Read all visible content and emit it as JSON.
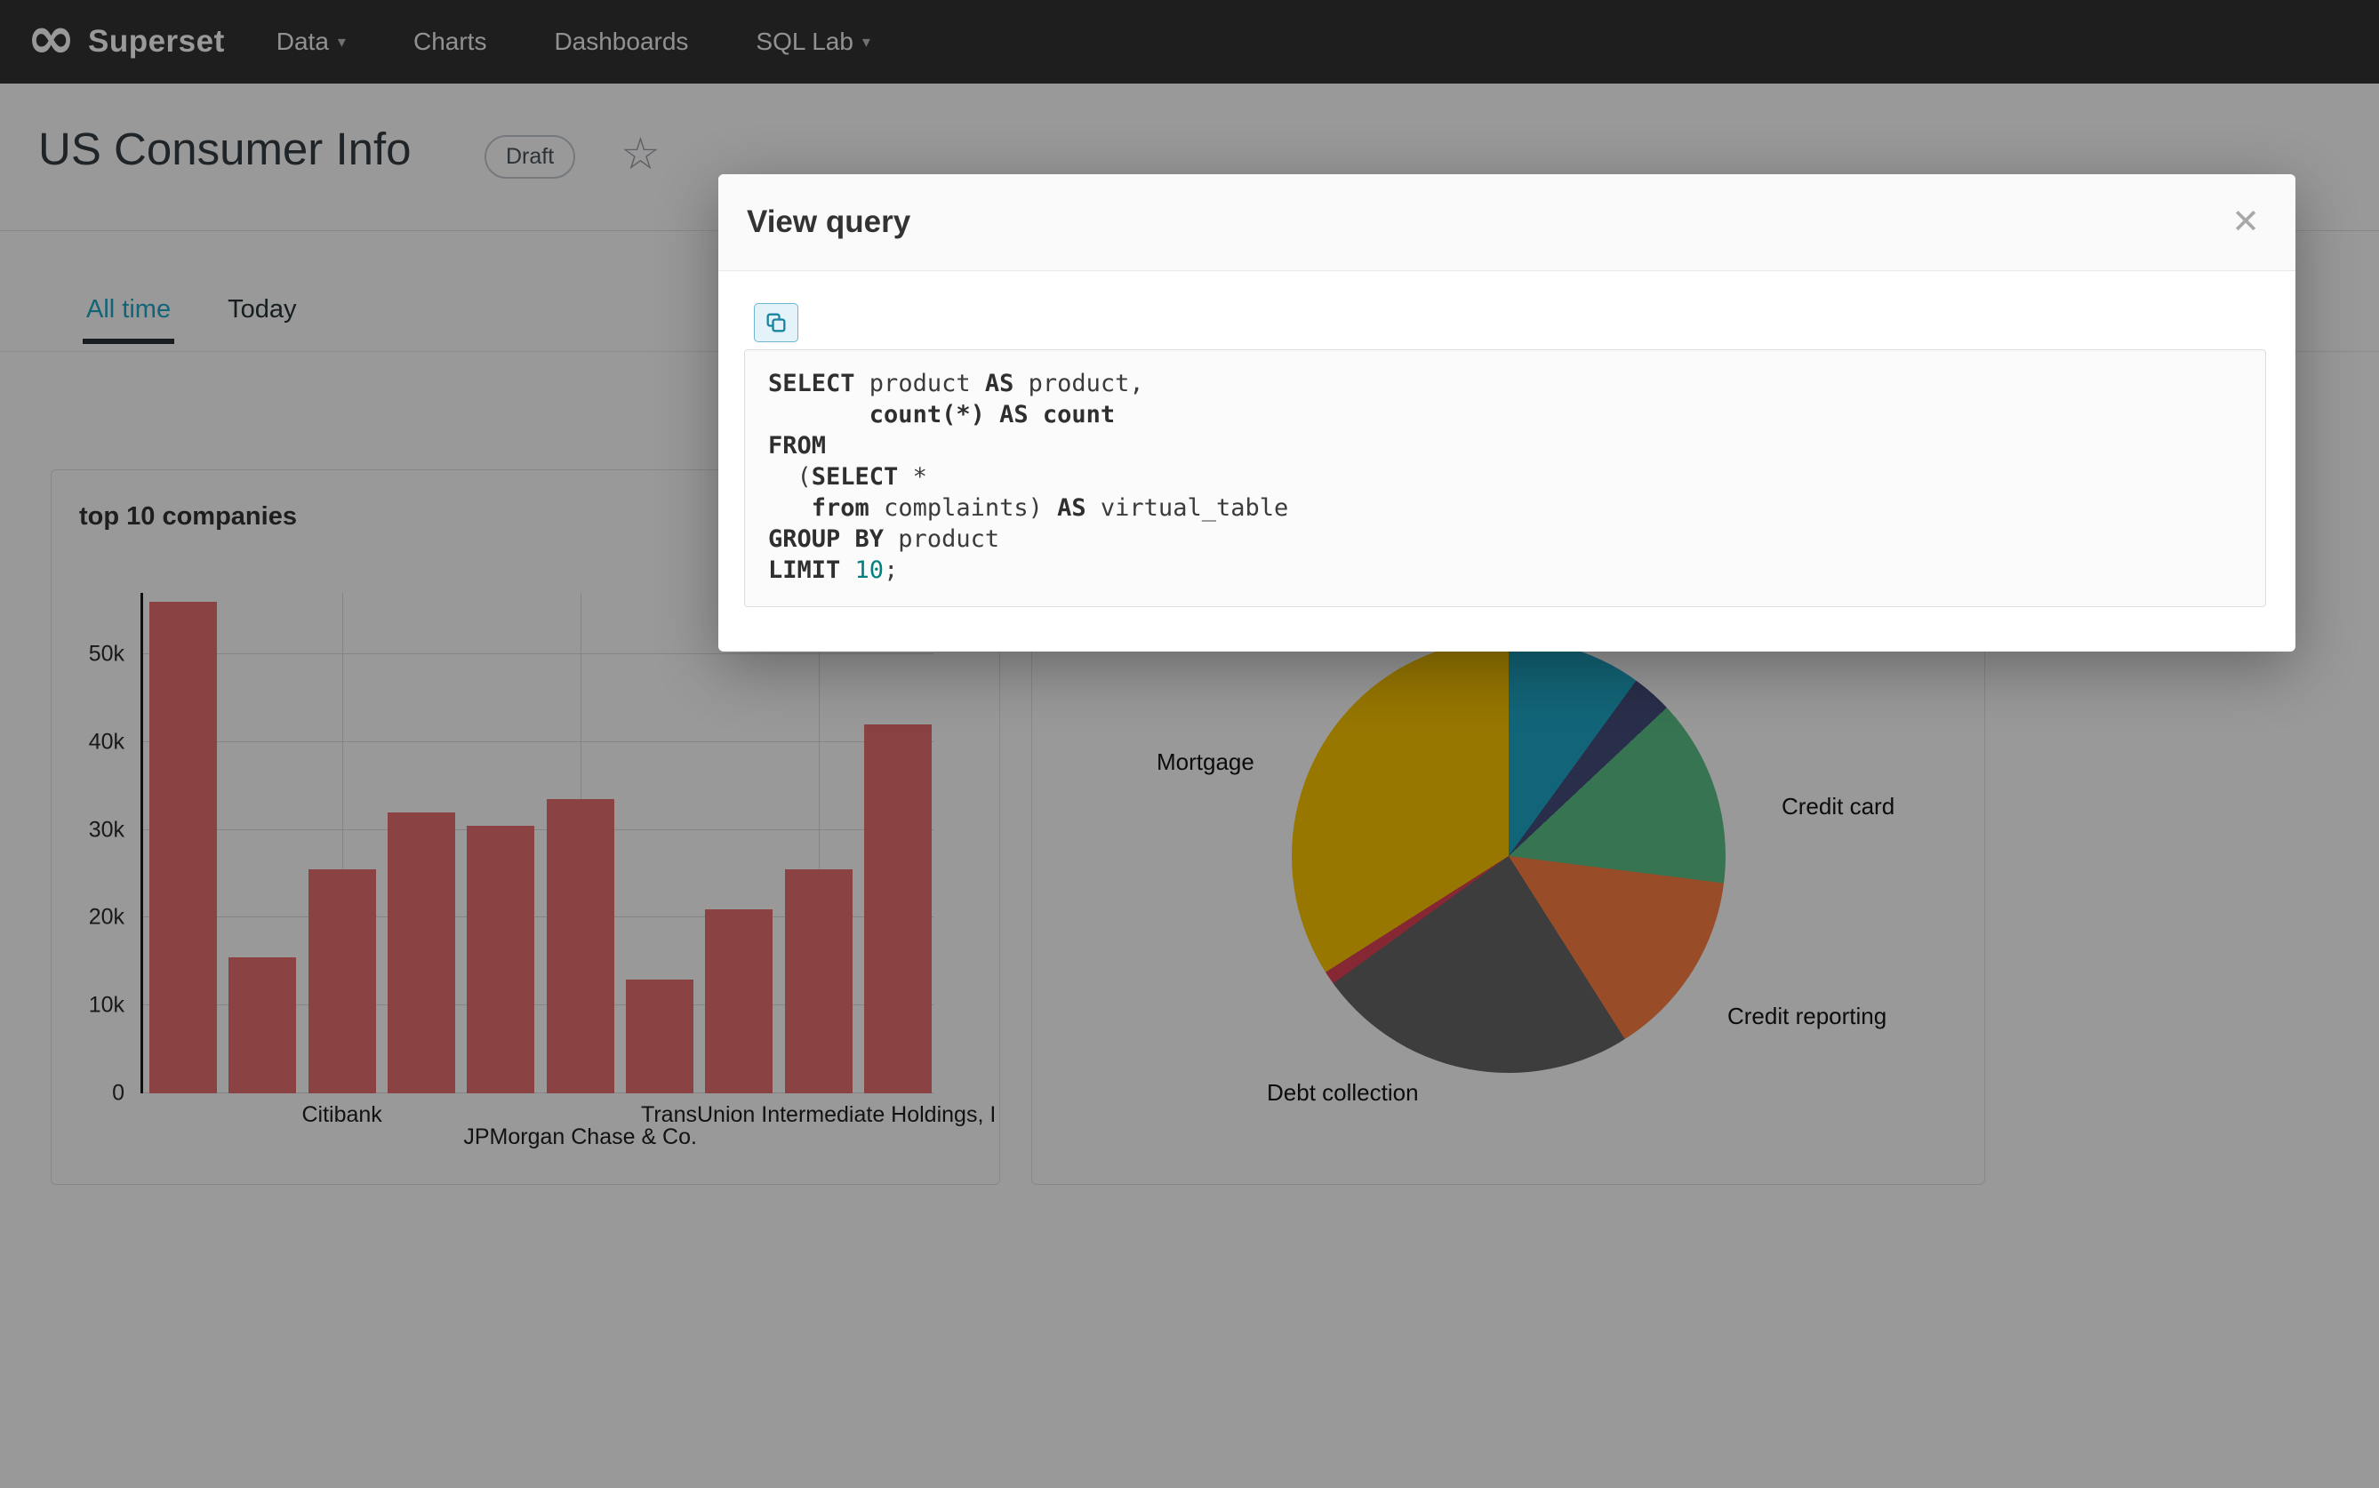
{
  "nav": {
    "brand": "Superset",
    "items": [
      {
        "label": "Data",
        "caret": true
      },
      {
        "label": "Charts",
        "caret": false
      },
      {
        "label": "Dashboards",
        "caret": false
      },
      {
        "label": "SQL Lab",
        "caret": true
      }
    ]
  },
  "icons": {
    "logo_infinity": "∞",
    "caret_down": "▾",
    "favorite_star": "☆",
    "close": "✕"
  },
  "header": {
    "title": "US Consumer Info",
    "badge": "Draft"
  },
  "tabs": [
    {
      "label": "All time",
      "active": true
    },
    {
      "label": "Today",
      "active": false
    }
  ],
  "modal": {
    "title": "View query"
  },
  "sql": {
    "lines": [
      [
        {
          "t": "SELECT",
          "s": "k"
        },
        {
          "t": " product ",
          "s": "n"
        },
        {
          "t": "AS",
          "s": "k"
        },
        {
          "t": " product,",
          "s": "n"
        }
      ],
      [
        {
          "t": "       ",
          "s": "n"
        },
        {
          "t": "count(*) AS count",
          "s": "k"
        }
      ],
      [
        {
          "t": "FROM",
          "s": "k"
        }
      ],
      [
        {
          "t": "  (",
          "s": "n"
        },
        {
          "t": "SELECT",
          "s": "k"
        },
        {
          "t": " *",
          "s": "n"
        }
      ],
      [
        {
          "t": "   ",
          "s": "n"
        },
        {
          "t": "from",
          "s": "k"
        },
        {
          "t": " complaints) ",
          "s": "n"
        },
        {
          "t": "AS",
          "s": "k"
        },
        {
          "t": " virtual_table",
          "s": "n"
        }
      ],
      [
        {
          "t": "GROUP BY",
          "s": "k"
        },
        {
          "t": " product",
          "s": "n"
        }
      ],
      [
        {
          "t": "LIMIT",
          "s": "k"
        },
        {
          "t": " ",
          "s": "n"
        },
        {
          "t": "10",
          "s": "num"
        },
        {
          "t": ";",
          "s": "n"
        }
      ]
    ]
  },
  "chart_data": [
    {
      "type": "bar",
      "title": "top 10 companies",
      "values": [
        56000,
        15500,
        25500,
        32000,
        30500,
        33500,
        13000,
        21000,
        25500,
        42000
      ],
      "ylim": [
        0,
        57000
      ],
      "yticks": [
        {
          "v": 0,
          "label": "0"
        },
        {
          "v": 10000,
          "label": "10k"
        },
        {
          "v": 20000,
          "label": "20k"
        },
        {
          "v": 30000,
          "label": "30k"
        },
        {
          "v": 40000,
          "label": "40k"
        },
        {
          "v": 50000,
          "label": "50k"
        }
      ],
      "x_tick_labels": [
        {
          "label": "Citibank",
          "bar_index": 2,
          "row": 1
        },
        {
          "label": "JPMorgan Chase & Co.",
          "bar_index": 5,
          "row": 2
        },
        {
          "label": "TransUnion Intermediate Holdings, I",
          "bar_index": 8,
          "row": 1
        }
      ],
      "bar_color": "#E66F71",
      "grid": true,
      "legend": false,
      "xlabel": "",
      "ylabel": ""
    },
    {
      "type": "pie",
      "title": "",
      "slices": [
        {
          "label": "",
          "value": 10,
          "color": "#1FA8C9"
        },
        {
          "label": "",
          "value": 3,
          "color": "#454E7C"
        },
        {
          "label": "Credit card",
          "value": 14,
          "color": "#5AC189"
        },
        {
          "label": "Credit reporting",
          "value": 14,
          "color": "#FF7F44"
        },
        {
          "label": "Debt collection",
          "value": 24,
          "color": "#666666"
        },
        {
          "label": "",
          "value": 1,
          "color": "#E04355"
        },
        {
          "label": "Mortgage",
          "value": 34,
          "color": "#FCC700"
        }
      ],
      "start_angle_deg": 0,
      "values_unit": "percent",
      "legend": false
    }
  ]
}
